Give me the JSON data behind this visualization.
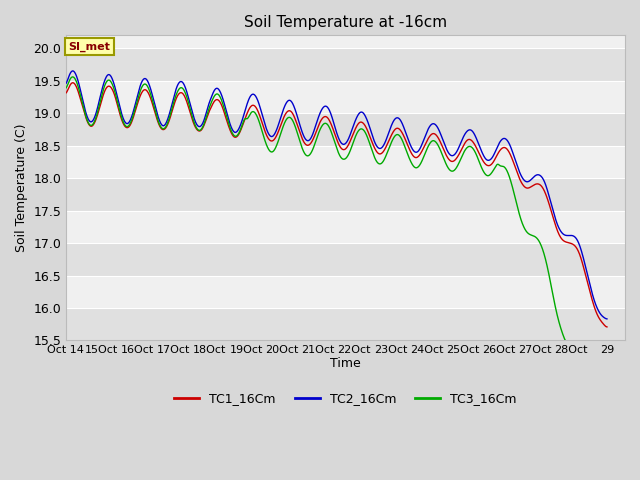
{
  "title": "Soil Temperature at -16cm",
  "ylabel": "Soil Temperature (C)",
  "xlabel": "Time",
  "annotation": "SI_met",
  "ylim": [
    15.5,
    20.2
  ],
  "yticks": [
    15.5,
    16.0,
    16.5,
    17.0,
    17.5,
    18.0,
    18.5,
    19.0,
    19.5,
    20.0
  ],
  "xtick_labels": [
    "Oct 14",
    "15Oct",
    "16Oct",
    "17Oct",
    "18Oct",
    "19Oct",
    "20Oct",
    "21Oct",
    "22Oct",
    "23Oct",
    "24Oct",
    "25Oct",
    "26Oct",
    "27Oct",
    "28Oct",
    "29"
  ],
  "fig_bg_color": "#d8d8d8",
  "plot_bg_color": "#f0f0f0",
  "stripe_color_dark": "#e0e0e0",
  "stripe_color_light": "#f0f0f0",
  "grid_color": "#ffffff",
  "line_colors": [
    "#cc0000",
    "#0000cc",
    "#00aa00"
  ],
  "legend_labels": [
    "TC1_16Cm",
    "TC2_16Cm",
    "TC3_16Cm"
  ],
  "annotation_facecolor": "#ffffaa",
  "annotation_edgecolor": "#999900",
  "annotation_textcolor": "#880000",
  "figsize": [
    6.4,
    4.8
  ],
  "dpi": 100
}
